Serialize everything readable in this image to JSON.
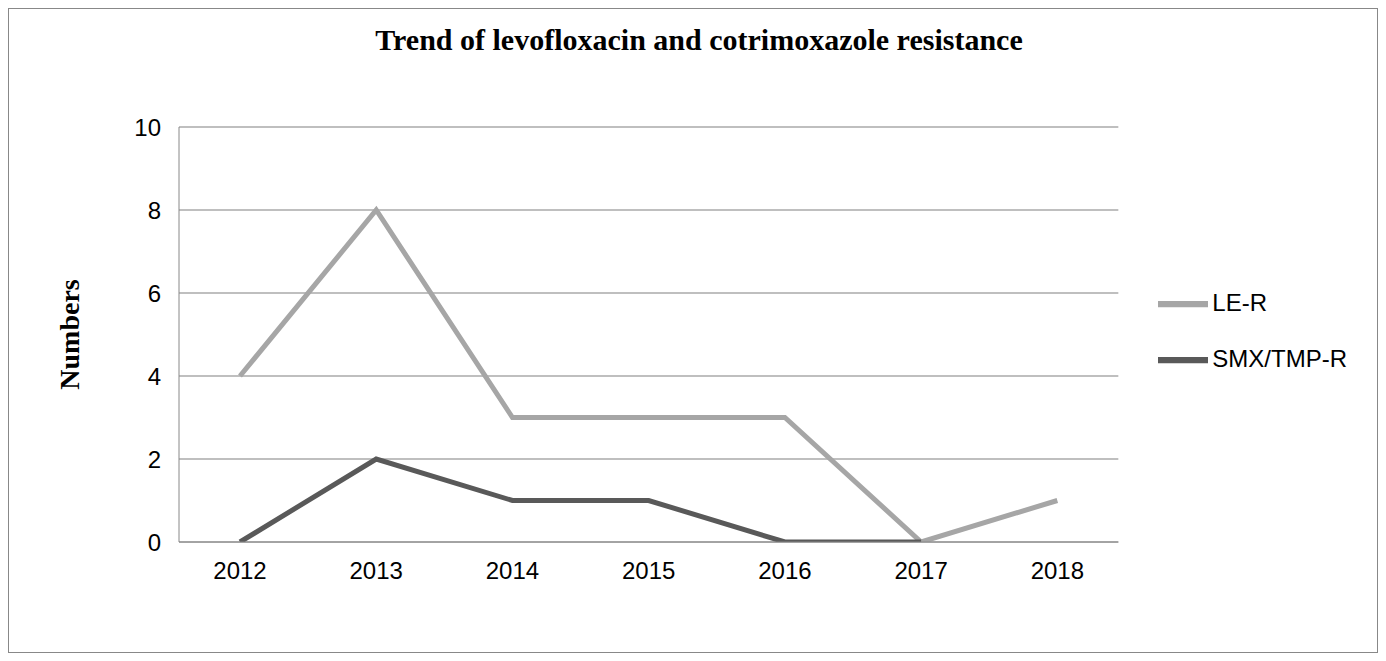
{
  "chart_data": {
    "type": "line",
    "title": "Trend of levofloxacin and cotrimoxazole resistance",
    "y_label": "Numbers",
    "categories": [
      "2012",
      "2013",
      "2014",
      "2015",
      "2016",
      "2017",
      "2018"
    ],
    "series": [
      {
        "name": "LE-R",
        "color": "#a6a6a6",
        "values": [
          4,
          8,
          3,
          3,
          3,
          0,
          1
        ]
      },
      {
        "name": "SMX/TMP-R",
        "color": "#595959",
        "values": [
          0,
          2,
          1,
          1,
          0,
          0,
          null
        ]
      }
    ],
    "ylim": [
      0,
      10
    ],
    "yticks": [
      0,
      2,
      4,
      6,
      8,
      10
    ],
    "grid": true,
    "legend": "right"
  }
}
